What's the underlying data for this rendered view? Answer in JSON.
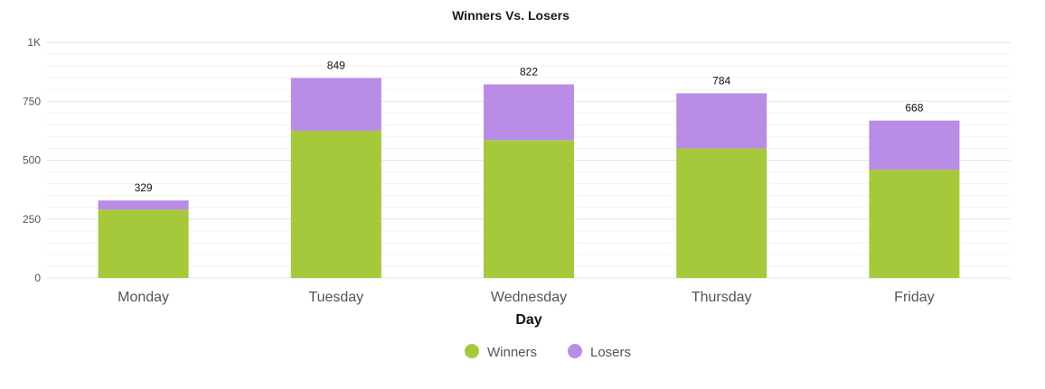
{
  "chart_data": {
    "type": "bar",
    "stacked": true,
    "title": "Winners Vs. Losers",
    "xlabel": "Day",
    "ylabel": "",
    "categories": [
      "Monday",
      "Tuesday",
      "Wednesday",
      "Thursday",
      "Friday"
    ],
    "series": [
      {
        "name": "Winners",
        "color": "#a5c93a",
        "values": [
          290,
          625,
          585,
          550,
          460
        ]
      },
      {
        "name": "Losers",
        "color": "#b98ce6",
        "values": [
          39,
          224,
          237,
          234,
          208
        ]
      }
    ],
    "totals": [
      "329",
      "849",
      "822",
      "784",
      "668"
    ],
    "ylim": [
      0,
      1000
    ],
    "yticks": [
      {
        "value": 0,
        "label": "0"
      },
      {
        "value": 250,
        "label": "250"
      },
      {
        "value": 500,
        "label": "500"
      },
      {
        "value": 750,
        "label": "750"
      },
      {
        "value": 1000,
        "label": "1K"
      }
    ],
    "grid": true,
    "legend_position": "bottom-center"
  }
}
